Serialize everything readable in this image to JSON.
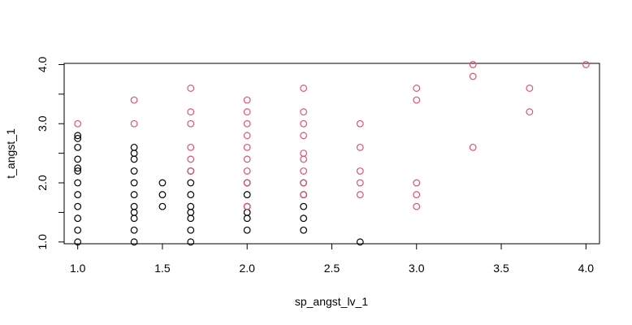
{
  "chart_data": {
    "type": "scatter",
    "title": "",
    "xlabel": "sp_angst_lv_1",
    "ylabel": "t_angst_1",
    "xlim": [
      0.92,
      4.08
    ],
    "ylim": [
      0.97,
      4.02
    ],
    "x_ticks": [
      "1.0",
      "1.5",
      "2.0",
      "2.5",
      "3.0",
      "3.5",
      "4.0"
    ],
    "y_ticks": [
      "1.0",
      "2.0",
      "3.0",
      "4.0"
    ],
    "grid": false,
    "legend": "none",
    "colors": {
      "black": "#000000",
      "red": "#DF536B"
    },
    "series": [
      {
        "color": "#000000",
        "points": [
          [
            1.0,
            1.0
          ],
          [
            1.0,
            1.2
          ],
          [
            1.0,
            1.4
          ],
          [
            1.0,
            1.6
          ],
          [
            1.0,
            1.8
          ],
          [
            1.0,
            2.0
          ],
          [
            1.0,
            2.2
          ],
          [
            1.0,
            2.25
          ],
          [
            1.0,
            2.4
          ],
          [
            1.0,
            2.6
          ],
          [
            1.0,
            2.75
          ],
          [
            1.0,
            2.8
          ],
          [
            1.333,
            1.0
          ],
          [
            1.333,
            1.2
          ],
          [
            1.333,
            1.4
          ],
          [
            1.333,
            1.5
          ],
          [
            1.333,
            1.6
          ],
          [
            1.333,
            1.8
          ],
          [
            1.333,
            2.0
          ],
          [
            1.333,
            2.2
          ],
          [
            1.333,
            2.4
          ],
          [
            1.333,
            2.5
          ],
          [
            1.333,
            2.6
          ],
          [
            1.5,
            1.6
          ],
          [
            1.5,
            1.8
          ],
          [
            1.5,
            2.0
          ],
          [
            1.667,
            1.0
          ],
          [
            1.667,
            1.2
          ],
          [
            1.667,
            1.4
          ],
          [
            1.667,
            1.5
          ],
          [
            1.667,
            1.6
          ],
          [
            1.667,
            1.8
          ],
          [
            1.667,
            2.0
          ],
          [
            1.667,
            2.2
          ],
          [
            2.0,
            1.2
          ],
          [
            2.0,
            1.4
          ],
          [
            2.0,
            1.5
          ],
          [
            2.0,
            1.6
          ],
          [
            2.0,
            1.8
          ],
          [
            2.0,
            2.0
          ],
          [
            2.333,
            1.2
          ],
          [
            2.333,
            1.4
          ],
          [
            2.333,
            1.6
          ],
          [
            2.333,
            1.8
          ],
          [
            2.333,
            2.0
          ],
          [
            2.667,
            1.0
          ]
        ]
      },
      {
        "color": "#DF536B",
        "points": [
          [
            1.0,
            3.0
          ],
          [
            1.333,
            3.0
          ],
          [
            1.333,
            3.4
          ],
          [
            1.667,
            2.2
          ],
          [
            1.667,
            2.4
          ],
          [
            1.667,
            2.6
          ],
          [
            1.667,
            3.0
          ],
          [
            1.667,
            3.2
          ],
          [
            1.667,
            3.6
          ],
          [
            2.0,
            1.6
          ],
          [
            2.0,
            2.0
          ],
          [
            2.0,
            2.2
          ],
          [
            2.0,
            2.4
          ],
          [
            2.0,
            2.6
          ],
          [
            2.0,
            2.8
          ],
          [
            2.0,
            3.0
          ],
          [
            2.0,
            3.2
          ],
          [
            2.0,
            3.4
          ],
          [
            2.333,
            1.8
          ],
          [
            2.333,
            2.0
          ],
          [
            2.333,
            2.2
          ],
          [
            2.333,
            2.4
          ],
          [
            2.333,
            2.5
          ],
          [
            2.333,
            2.8
          ],
          [
            2.333,
            3.0
          ],
          [
            2.333,
            3.2
          ],
          [
            2.333,
            3.6
          ],
          [
            2.667,
            1.8
          ],
          [
            2.667,
            2.0
          ],
          [
            2.667,
            2.2
          ],
          [
            2.667,
            2.6
          ],
          [
            2.667,
            3.0
          ],
          [
            3.0,
            1.6
          ],
          [
            3.0,
            1.8
          ],
          [
            3.0,
            2.0
          ],
          [
            3.0,
            3.4
          ],
          [
            3.0,
            3.6
          ],
          [
            3.333,
            2.6
          ],
          [
            3.333,
            3.8
          ],
          [
            3.333,
            4.0
          ],
          [
            3.667,
            3.2
          ],
          [
            3.667,
            3.6
          ],
          [
            4.0,
            4.0
          ]
        ]
      }
    ]
  }
}
